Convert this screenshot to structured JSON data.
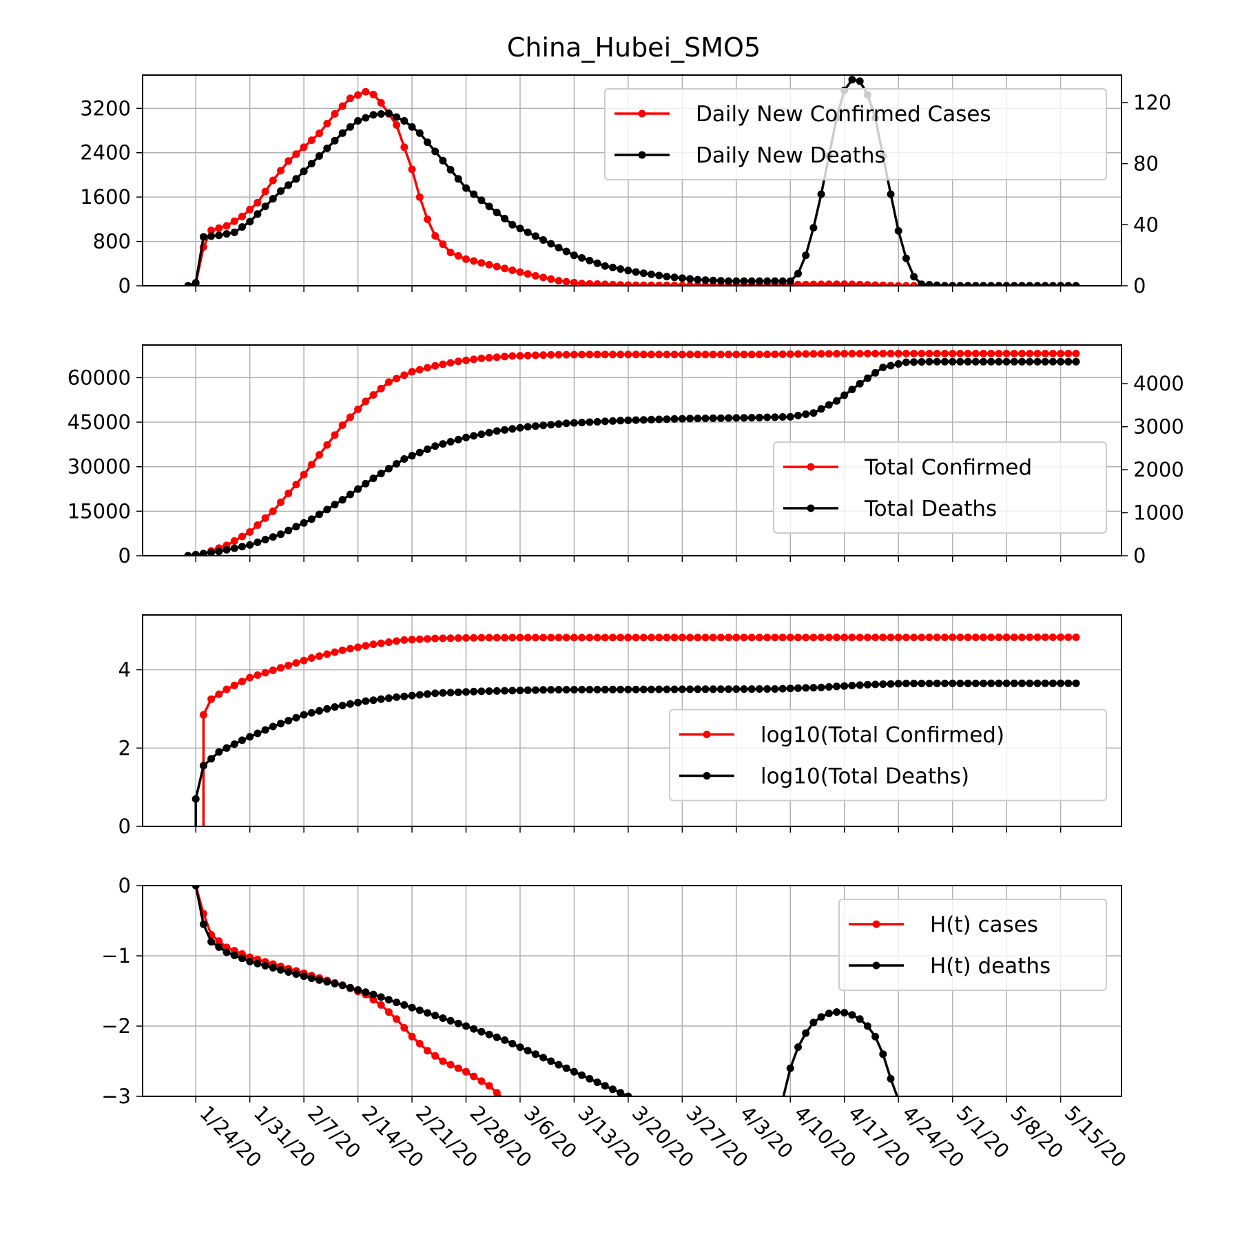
{
  "figure": {
    "title": "China_Hubei_SMO5"
  },
  "x_axis": {
    "type": "date",
    "start": "1/23/20",
    "end": "5/17/20",
    "ticks": [
      "1/24/20",
      "1/31/20",
      "2/7/20",
      "2/14/20",
      "2/21/20",
      "2/28/20",
      "3/6/20",
      "3/13/20",
      "3/20/20",
      "3/27/20",
      "4/3/20",
      "4/10/20",
      "4/17/20",
      "4/24/20",
      "5/1/20",
      "5/8/20",
      "5/15/20"
    ]
  },
  "colors": {
    "cases": "#ff0000",
    "deaths": "#000000",
    "grid": "#b0b0b0"
  },
  "chart_data": [
    {
      "type": "line",
      "panel": "daily",
      "left_axis": {
        "ylim": [
          0,
          3800
        ],
        "ticks": [
          "0",
          "800",
          "1600",
          "2400",
          "3200"
        ]
      },
      "right_axis": {
        "ylim": [
          0,
          138
        ],
        "ticks": [
          "0",
          "40",
          "80",
          "120"
        ]
      },
      "legend": {
        "position": "upper right"
      },
      "series": [
        {
          "name": "Daily New Confirmed Cases",
          "axis": "left",
          "points": [
            [
              "1/23/20",
              0
            ],
            [
              "1/24/20",
              40
            ],
            [
              "1/25/20",
              700
            ],
            [
              "1/26/20",
              1000
            ],
            [
              "1/28/20",
              1080
            ],
            [
              "1/30/20",
              1250
            ],
            [
              "2/1/20",
              1500
            ],
            [
              "2/3/20",
              1900
            ],
            [
              "2/5/20",
              2250
            ],
            [
              "2/7/20",
              2500
            ],
            [
              "2/9/20",
              2750
            ],
            [
              "2/11/20",
              3100
            ],
            [
              "2/13/20",
              3380
            ],
            [
              "2/15/20",
              3500
            ],
            [
              "2/16/20",
              3450
            ],
            [
              "2/17/20",
              3300
            ],
            [
              "2/18/20",
              3100
            ],
            [
              "2/19/20",
              2900
            ],
            [
              "2/20/20",
              2500
            ],
            [
              "2/21/20",
              2100
            ],
            [
              "2/22/20",
              1600
            ],
            [
              "2/23/20",
              1200
            ],
            [
              "2/24/20",
              900
            ],
            [
              "2/26/20",
              600
            ],
            [
              "2/28/20",
              480
            ],
            [
              "3/2/20",
              380
            ],
            [
              "3/5/20",
              280
            ],
            [
              "3/8/20",
              180
            ],
            [
              "3/11/20",
              90
            ],
            [
              "3/14/20",
              40
            ],
            [
              "3/20/20",
              12
            ],
            [
              "3/27/20",
              5
            ],
            [
              "4/3/20",
              5
            ],
            [
              "4/10/20",
              20
            ],
            [
              "4/17/20",
              30
            ],
            [
              "4/24/20",
              0
            ],
            [
              "5/1/20",
              0
            ],
            [
              "5/8/20",
              0
            ],
            [
              "5/15/20",
              0
            ],
            [
              "5/17/20",
              0
            ]
          ]
        },
        {
          "name": "Daily New Deaths",
          "axis": "right",
          "points": [
            [
              "1/23/20",
              0
            ],
            [
              "1/24/20",
              2
            ],
            [
              "1/25/20",
              32
            ],
            [
              "1/27/20",
              33
            ],
            [
              "1/29/20",
              35
            ],
            [
              "1/31/20",
              42
            ],
            [
              "2/2/20",
              52
            ],
            [
              "2/4/20",
              62
            ],
            [
              "2/6/20",
              70
            ],
            [
              "2/8/20",
              80
            ],
            [
              "2/10/20",
              90
            ],
            [
              "2/12/20",
              100
            ],
            [
              "2/14/20",
              108
            ],
            [
              "2/16/20",
              112
            ],
            [
              "2/18/20",
              113
            ],
            [
              "2/20/20",
              108
            ],
            [
              "2/22/20",
              100
            ],
            [
              "2/24/20",
              88
            ],
            [
              "2/26/20",
              76
            ],
            [
              "2/28/20",
              64
            ],
            [
              "3/2/20",
              52
            ],
            [
              "3/5/20",
              40
            ],
            [
              "3/9/20",
              30
            ],
            [
              "3/13/20",
              20
            ],
            [
              "3/17/20",
              13
            ],
            [
              "3/21/20",
              9
            ],
            [
              "3/25/20",
              6
            ],
            [
              "3/29/20",
              4
            ],
            [
              "4/2/20",
              3
            ],
            [
              "4/6/20",
              3
            ],
            [
              "4/10/20",
              3
            ],
            [
              "4/11/20",
              8
            ],
            [
              "4/12/20",
              20
            ],
            [
              "4/13/20",
              38
            ],
            [
              "4/14/20",
              60
            ],
            [
              "4/15/20",
              85
            ],
            [
              "4/16/20",
              110
            ],
            [
              "4/17/20",
              128
            ],
            [
              "4/18/20",
              135
            ],
            [
              "4/19/20",
              134
            ],
            [
              "4/20/20",
              125
            ],
            [
              "4/21/20",
              110
            ],
            [
              "4/22/20",
              85
            ],
            [
              "4/23/20",
              60
            ],
            [
              "4/24/20",
              36
            ],
            [
              "4/25/20",
              18
            ],
            [
              "4/26/20",
              6
            ],
            [
              "4/27/20",
              1
            ],
            [
              "4/30/20",
              0
            ],
            [
              "5/8/20",
              0
            ],
            [
              "5/17/20",
              0
            ]
          ]
        }
      ]
    },
    {
      "type": "line",
      "panel": "cumulative",
      "left_axis": {
        "ylim": [
          0,
          71000
        ],
        "ticks": [
          "0",
          "15000",
          "30000",
          "45000",
          "60000"
        ]
      },
      "right_axis": {
        "ylim": [
          0,
          4900
        ],
        "ticks": [
          "0",
          "1000",
          "2000",
          "3000",
          "4000"
        ]
      },
      "legend": {
        "position": "center right"
      },
      "series": [
        {
          "name": "Total Confirmed",
          "axis": "left",
          "points": [
            [
              "1/23/20",
              0
            ],
            [
              "1/25/20",
              700
            ],
            [
              "1/28/20",
              3500
            ],
            [
              "1/31/20",
              8000
            ],
            [
              "2/3/20",
              15000
            ],
            [
              "2/6/20",
              24000
            ],
            [
              "2/9/20",
              34000
            ],
            [
              "2/12/20",
              44000
            ],
            [
              "2/15/20",
              52000
            ],
            [
              "2/18/20",
              58500
            ],
            [
              "2/21/20",
              62000
            ],
            [
              "2/24/20",
              64000
            ],
            [
              "2/27/20",
              65500
            ],
            [
              "3/1/20",
              66500
            ],
            [
              "3/5/20",
              67300
            ],
            [
              "3/10/20",
              67700
            ],
            [
              "3/15/20",
              67800
            ],
            [
              "3/25/20",
              67800
            ],
            [
              "4/5/20",
              67800
            ],
            [
              "4/17/20",
              68100
            ],
            [
              "4/24/20",
              68130
            ],
            [
              "5/17/20",
              68130
            ]
          ]
        },
        {
          "name": "Total Deaths",
          "axis": "right",
          "points": [
            [
              "1/23/20",
              0
            ],
            [
              "1/27/20",
              100
            ],
            [
              "1/31/20",
              250
            ],
            [
              "2/4/20",
              500
            ],
            [
              "2/8/20",
              850
            ],
            [
              "2/12/20",
              1300
            ],
            [
              "2/16/20",
              1800
            ],
            [
              "2/20/20",
              2250
            ],
            [
              "2/24/20",
              2550
            ],
            [
              "2/28/20",
              2750
            ],
            [
              "3/3/20",
              2900
            ],
            [
              "3/7/20",
              3000
            ],
            [
              "3/12/20",
              3080
            ],
            [
              "3/20/20",
              3150
            ],
            [
              "3/28/20",
              3190
            ],
            [
              "4/5/20",
              3210
            ],
            [
              "4/10/20",
              3230
            ],
            [
              "4/13/20",
              3320
            ],
            [
              "4/16/20",
              3600
            ],
            [
              "4/19/20",
              4000
            ],
            [
              "4/22/20",
              4380
            ],
            [
              "4/25/20",
              4500
            ],
            [
              "4/28/20",
              4512
            ],
            [
              "5/17/20",
              4512
            ]
          ]
        }
      ]
    },
    {
      "type": "line",
      "panel": "log",
      "left_axis": {
        "ylim": [
          0,
          5.4
        ],
        "ticks": [
          "0",
          "2",
          "4"
        ]
      },
      "legend": {
        "position": "center right"
      },
      "series": [
        {
          "name": "log10(Total Confirmed)",
          "axis": "left",
          "points": [
            [
              "1/25/20",
              -0.5
            ],
            [
              "1/25/20",
              2.85
            ],
            [
              "1/26/20",
              3.25
            ],
            [
              "1/28/20",
              3.5
            ],
            [
              "1/31/20",
              3.8
            ],
            [
              "2/4/20",
              4.05
            ],
            [
              "2/8/20",
              4.3
            ],
            [
              "2/12/20",
              4.5
            ],
            [
              "2/16/20",
              4.65
            ],
            [
              "2/20/20",
              4.76
            ],
            [
              "2/24/20",
              4.8
            ],
            [
              "3/1/20",
              4.82
            ],
            [
              "5/17/20",
              4.83
            ]
          ]
        },
        {
          "name": "log10(Total Deaths)",
          "axis": "left",
          "points": [
            [
              "1/24/20",
              -0.5
            ],
            [
              "1/24/20",
              0.7
            ],
            [
              "1/25/20",
              1.55
            ],
            [
              "1/27/20",
              1.9
            ],
            [
              "1/30/20",
              2.2
            ],
            [
              "2/3/20",
              2.55
            ],
            [
              "2/7/20",
              2.85
            ],
            [
              "2/11/20",
              3.05
            ],
            [
              "2/15/20",
              3.2
            ],
            [
              "2/19/20",
              3.3
            ],
            [
              "2/24/20",
              3.4
            ],
            [
              "3/1/20",
              3.45
            ],
            [
              "3/10/20",
              3.49
            ],
            [
              "4/8/20",
              3.51
            ],
            [
              "4/14/20",
              3.55
            ],
            [
              "4/20/20",
              3.62
            ],
            [
              "4/25/20",
              3.65
            ],
            [
              "5/17/20",
              3.655
            ]
          ]
        }
      ]
    },
    {
      "type": "line",
      "panel": "hazard",
      "left_axis": {
        "ylim": [
          -3,
          0
        ],
        "ticks": [
          "0",
          "−1",
          "−2",
          "−3"
        ]
      },
      "legend": {
        "position": "upper right"
      },
      "series": [
        {
          "name": "H(t) cases",
          "axis": "left",
          "points": [
            [
              "1/24/20",
              0
            ],
            [
              "1/25/20",
              -0.4
            ],
            [
              "1/26/20",
              -0.7
            ],
            [
              "1/28/20",
              -0.88
            ],
            [
              "1/31/20",
              -1.02
            ],
            [
              "2/4/20",
              -1.15
            ],
            [
              "2/8/20",
              -1.28
            ],
            [
              "2/12/20",
              -1.42
            ],
            [
              "2/15/20",
              -1.55
            ],
            [
              "2/17/20",
              -1.7
            ],
            [
              "2/19/20",
              -1.9
            ],
            [
              "2/21/20",
              -2.15
            ],
            [
              "2/23/20",
              -2.35
            ],
            [
              "2/25/20",
              -2.5
            ],
            [
              "2/28/20",
              -2.65
            ],
            [
              "3/2/20",
              -2.85
            ],
            [
              "3/4/20",
              -3.05
            ]
          ]
        },
        {
          "name": "H(t) deaths",
          "axis": "left",
          "points": [
            [
              "1/24/20",
              0
            ],
            [
              "1/25/20",
              -0.55
            ],
            [
              "1/26/20",
              -0.8
            ],
            [
              "1/28/20",
              -0.95
            ],
            [
              "1/31/20",
              -1.08
            ],
            [
              "2/4/20",
              -1.2
            ],
            [
              "2/8/20",
              -1.32
            ],
            [
              "2/12/20",
              -1.42
            ],
            [
              "2/16/20",
              -1.55
            ],
            [
              "2/20/20",
              -1.7
            ],
            [
              "2/24/20",
              -1.85
            ],
            [
              "2/28/20",
              -2.0
            ],
            [
              "3/4/20",
              -2.2
            ],
            [
              "3/9/20",
              -2.45
            ],
            [
              "3/14/20",
              -2.7
            ],
            [
              "3/18/20",
              -2.9
            ],
            [
              "3/21/20",
              -3.05
            ]
          ]
        },
        {
          "name": "H(t) deaths",
          "axis": "left",
          "segment": 2,
          "points": [
            [
              "4/9/20",
              -3.05
            ],
            [
              "4/10/20",
              -2.6
            ],
            [
              "4/11/20",
              -2.3
            ],
            [
              "4/12/20",
              -2.1
            ],
            [
              "4/13/20",
              -1.95
            ],
            [
              "4/14/20",
              -1.87
            ],
            [
              "4/15/20",
              -1.82
            ],
            [
              "4/16/20",
              -1.8
            ],
            [
              "4/17/20",
              -1.81
            ],
            [
              "4/18/20",
              -1.84
            ],
            [
              "4/19/20",
              -1.9
            ],
            [
              "4/20/20",
              -2.0
            ],
            [
              "4/21/20",
              -2.15
            ],
            [
              "4/22/20",
              -2.4
            ],
            [
              "4/23/20",
              -2.75
            ],
            [
              "4/24/20",
              -3.05
            ]
          ]
        }
      ]
    }
  ]
}
